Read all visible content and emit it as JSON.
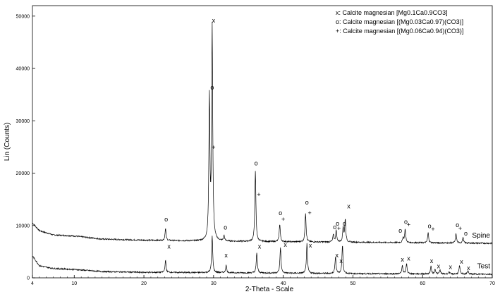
{
  "chart_data": {
    "type": "line",
    "xlabel": "2-Theta - Scale",
    "ylabel": "Lin (Counts)",
    "xlim": [
      4,
      70
    ],
    "ylim": [
      0,
      52000
    ],
    "xticks": [
      4,
      10,
      20,
      30,
      40,
      50,
      60,
      70
    ],
    "yticks": [
      0,
      10000,
      20000,
      30000,
      40000,
      50000
    ],
    "grid": false,
    "legend_position": "top-right",
    "legend": [
      "x: Calcite magnesian [Mg0.1Ca0.9CO3]",
      "o: Calcite magnesian [(Mg0.03Ca0.97)(CO3)]",
      "+: Calcite magnesian [(Mg0.06Ca0.94)(CO3)]"
    ],
    "series": [
      {
        "name": "Spine",
        "baseline": [
          [
            4,
            10500
          ],
          [
            5,
            9000
          ],
          [
            7,
            8200
          ],
          [
            10,
            8000
          ],
          [
            14,
            7400
          ],
          [
            20,
            7200
          ],
          [
            30,
            7000
          ],
          [
            40,
            6900
          ],
          [
            50,
            6800
          ],
          [
            60,
            6700
          ],
          [
            70,
            6600
          ]
        ],
        "peaks": [
          [
            23.1,
            9400
          ],
          [
            29.4,
            34000
          ],
          [
            29.8,
            47500
          ],
          [
            31.5,
            8000
          ],
          [
            36.0,
            20300
          ],
          [
            39.5,
            10300
          ],
          [
            43.2,
            12400
          ],
          [
            47.2,
            8300
          ],
          [
            47.6,
            9000
          ],
          [
            48.6,
            9600
          ],
          [
            48.9,
            11200
          ],
          [
            57.2,
            7700
          ],
          [
            57.5,
            9300
          ],
          [
            60.8,
            8600
          ],
          [
            64.8,
            8400
          ],
          [
            65.8,
            7700
          ]
        ],
        "markers": [
          {
            "x": 23.2,
            "y": 10800,
            "symbol": "o"
          },
          {
            "x": 30.0,
            "y": 48800,
            "symbol": "x"
          },
          {
            "x": 29.8,
            "y": 36000,
            "symbol": "o"
          },
          {
            "x": 30.0,
            "y": 24500,
            "symbol": "+"
          },
          {
            "x": 31.7,
            "y": 9200,
            "symbol": "o"
          },
          {
            "x": 36.1,
            "y": 21500,
            "symbol": "o"
          },
          {
            "x": 36.5,
            "y": 15500,
            "symbol": "+"
          },
          {
            "x": 39.6,
            "y": 12000,
            "symbol": "o"
          },
          {
            "x": 40.0,
            "y": 10800,
            "symbol": "+"
          },
          {
            "x": 43.4,
            "y": 14000,
            "symbol": "o"
          },
          {
            "x": 43.8,
            "y": 12000,
            "symbol": "+"
          },
          {
            "x": 47.4,
            "y": 9300,
            "symbol": "o"
          },
          {
            "x": 47.8,
            "y": 10000,
            "symbol": "o"
          },
          {
            "x": 48.0,
            "y": 9000,
            "symbol": "+"
          },
          {
            "x": 48.8,
            "y": 10000,
            "symbol": "o"
          },
          {
            "x": 49.4,
            "y": 13300,
            "symbol": "x"
          },
          {
            "x": 56.8,
            "y": 8600,
            "symbol": "o"
          },
          {
            "x": 57.6,
            "y": 10300,
            "symbol": "o"
          },
          {
            "x": 58.0,
            "y": 9800,
            "symbol": "+"
          },
          {
            "x": 61.0,
            "y": 9500,
            "symbol": "o"
          },
          {
            "x": 61.5,
            "y": 8900,
            "symbol": "+"
          },
          {
            "x": 65.0,
            "y": 9700,
            "symbol": "o"
          },
          {
            "x": 65.4,
            "y": 9000,
            "symbol": "+"
          },
          {
            "x": 66.2,
            "y": 8100,
            "symbol": "o"
          }
        ]
      },
      {
        "name": "Test",
        "baseline": [
          [
            4,
            4200
          ],
          [
            5,
            2300
          ],
          [
            7,
            1800
          ],
          [
            10,
            1600
          ],
          [
            14,
            1200
          ],
          [
            20,
            1050
          ],
          [
            30,
            1000
          ],
          [
            40,
            900
          ],
          [
            50,
            800
          ],
          [
            60,
            750
          ],
          [
            70,
            700
          ]
        ],
        "peaks": [
          [
            23.1,
            3300
          ],
          [
            29.8,
            8000
          ],
          [
            31.8,
            2400
          ],
          [
            36.2,
            4800
          ],
          [
            39.6,
            5800
          ],
          [
            43.4,
            6500
          ],
          [
            47.5,
            4100
          ],
          [
            48.5,
            6200
          ],
          [
            57.1,
            2400
          ],
          [
            57.7,
            2700
          ],
          [
            61.2,
            2200
          ],
          [
            61.8,
            1700
          ],
          [
            62.5,
            1500
          ],
          [
            63.8,
            1200
          ],
          [
            65.3,
            2300
          ],
          [
            66.5,
            1400
          ]
        ],
        "markers": [
          {
            "x": 23.6,
            "y": 5600,
            "symbol": "x"
          },
          {
            "x": 31.8,
            "y": 3900,
            "symbol": "x"
          },
          {
            "x": 36.6,
            "y": 5600,
            "symbol": "x"
          },
          {
            "x": 40.3,
            "y": 5900,
            "symbol": "x"
          },
          {
            "x": 43.9,
            "y": 5800,
            "symbol": "x"
          },
          {
            "x": 47.7,
            "y": 3900,
            "symbol": "x"
          },
          {
            "x": 48.3,
            "y": 2800,
            "symbol": "x"
          },
          {
            "x": 57.1,
            "y": 3100,
            "symbol": "x"
          },
          {
            "x": 58.0,
            "y": 3300,
            "symbol": "x"
          },
          {
            "x": 61.3,
            "y": 2800,
            "symbol": "x"
          },
          {
            "x": 62.3,
            "y": 1800,
            "symbol": "x"
          },
          {
            "x": 64.0,
            "y": 1700,
            "symbol": "x"
          },
          {
            "x": 65.6,
            "y": 2700,
            "symbol": "x"
          },
          {
            "x": 66.6,
            "y": 1500,
            "symbol": "x"
          }
        ]
      }
    ]
  }
}
